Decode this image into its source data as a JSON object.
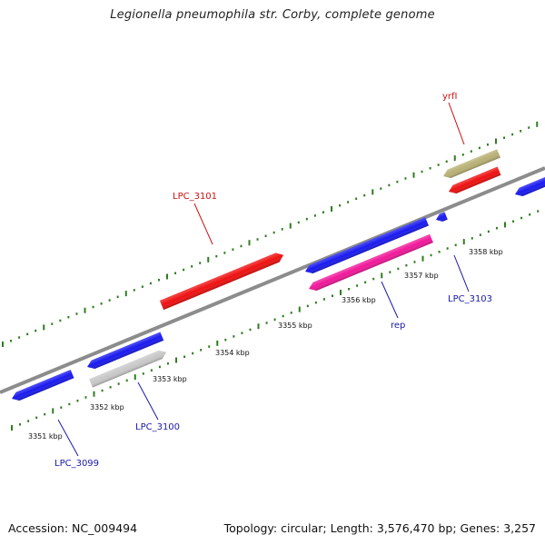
{
  "title": "Legionella pneumophila str. Corby, complete genome",
  "footer": {
    "accession": "Accession: NC_009494",
    "summary": "Topology: circular; Length: 3,576,470 bp; Genes: 3,257"
  },
  "colors": {
    "backbone": "#8c8c8c",
    "tick": "#2e7d1e",
    "label_red": "#cc1111",
    "label_blue": "#1a1aa8",
    "gene_red": "#ee1111",
    "gene_blue": "#1a1af0",
    "gene_pink": "#f0189a",
    "gene_grey": "#c8c8c8",
    "gene_olive": "#b8b074"
  },
  "tick_labels": [
    "3351 kbp",
    "3352 kbp",
    "3353 kbp",
    "3354 kbp",
    "3355 kbp",
    "3356 kbp",
    "3357 kbp",
    "3358 kbp"
  ],
  "genes": [
    {
      "label": "LPC_3099",
      "strand": "reverse",
      "color": "blue"
    },
    {
      "label": "LPC_3100",
      "strand": "reverse",
      "color": "blue"
    },
    {
      "label": "",
      "strand": "forward",
      "color": "grey"
    },
    {
      "label": "LPC_3101",
      "strand": "forward",
      "color": "red"
    },
    {
      "label": "",
      "strand": "reverse",
      "color": "blue"
    },
    {
      "label": "rep",
      "strand": "reverse",
      "color": "pink"
    },
    {
      "label": "LPC_3103",
      "strand": "reverse",
      "color": "blue"
    },
    {
      "label": "yrfI",
      "strand": "reverse",
      "color": "olive"
    },
    {
      "label": "",
      "strand": "reverse",
      "color": "red"
    },
    {
      "label": "",
      "strand": "reverse",
      "color": "blue"
    }
  ]
}
